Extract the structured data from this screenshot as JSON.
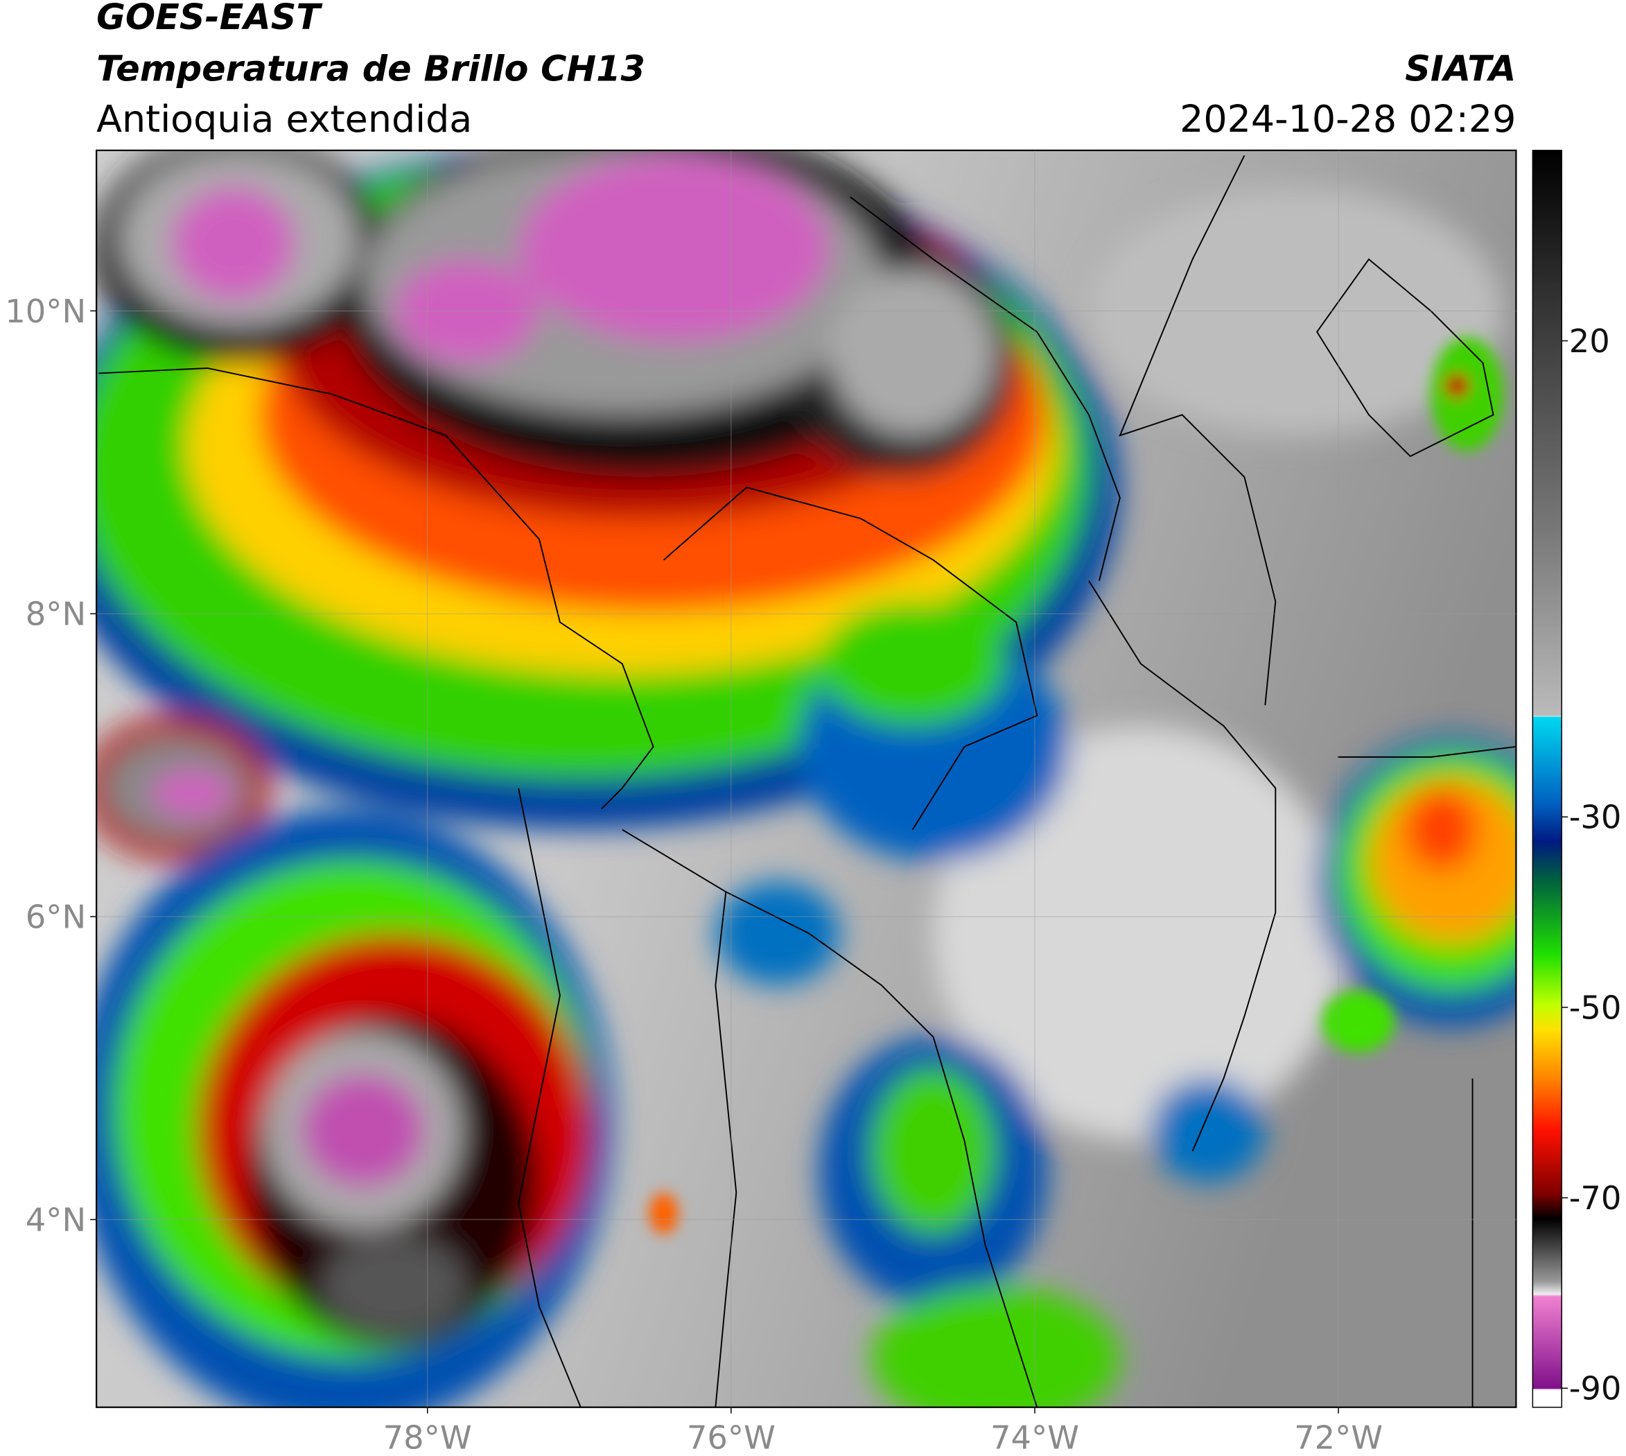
{
  "header": {
    "title": "GOES-EAST",
    "subtitle": "Temperatura de Brillo CH13",
    "region": "Antioquia extendida",
    "source": "SIATA",
    "datetime": "2024-10-28 02:29"
  },
  "map": {
    "xlim": [
      -80.18,
      -70.83
    ],
    "ylim": [
      2.76,
      11.06
    ],
    "xticks": [
      {
        "value": -78,
        "label": "78°W"
      },
      {
        "value": -76,
        "label": "76°W"
      },
      {
        "value": -74,
        "label": "74°W"
      },
      {
        "value": -72,
        "label": "72°W"
      }
    ],
    "yticks": [
      {
        "value": 10,
        "label": "10°N"
      },
      {
        "value": 8,
        "label": "8°N"
      },
      {
        "value": 6,
        "label": "6°N"
      },
      {
        "value": 4,
        "label": "4°N"
      }
    ],
    "grid": true
  },
  "colorbar": {
    "lim": [
      -92,
      40
    ],
    "ticks": [
      20,
      -30,
      -50,
      -70,
      -90
    ]
  }
}
